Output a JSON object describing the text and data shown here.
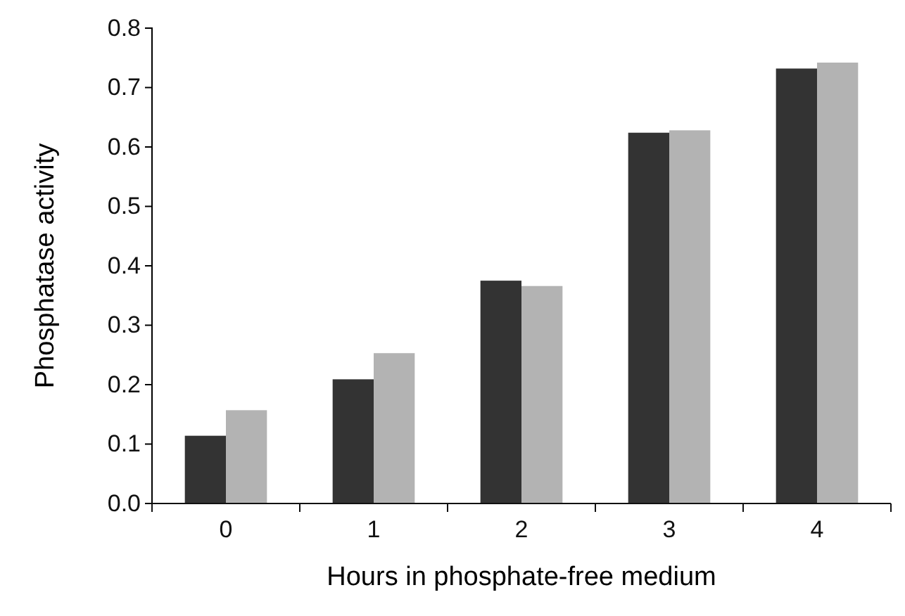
{
  "chart_data": {
    "type": "bar",
    "xlabel": "Hours in phosphate-free medium",
    "ylabel": "Phosphatase activity",
    "categories": [
      "0",
      "1",
      "2",
      "3",
      "4"
    ],
    "series": [
      {
        "color": "#333333",
        "values": [
          0.114,
          0.209,
          0.375,
          0.624,
          0.732
        ]
      },
      {
        "color": "#b3b3b3",
        "values": [
          0.157,
          0.253,
          0.366,
          0.628,
          0.742
        ]
      }
    ],
    "ylim": [
      0,
      0.8
    ],
    "yticks": [
      {
        "value": 0,
        "label": "0.0"
      },
      0.1,
      0.2,
      0.3,
      0.4,
      0.5,
      0.6,
      0.7,
      0.8
    ],
    "grid": false
  }
}
